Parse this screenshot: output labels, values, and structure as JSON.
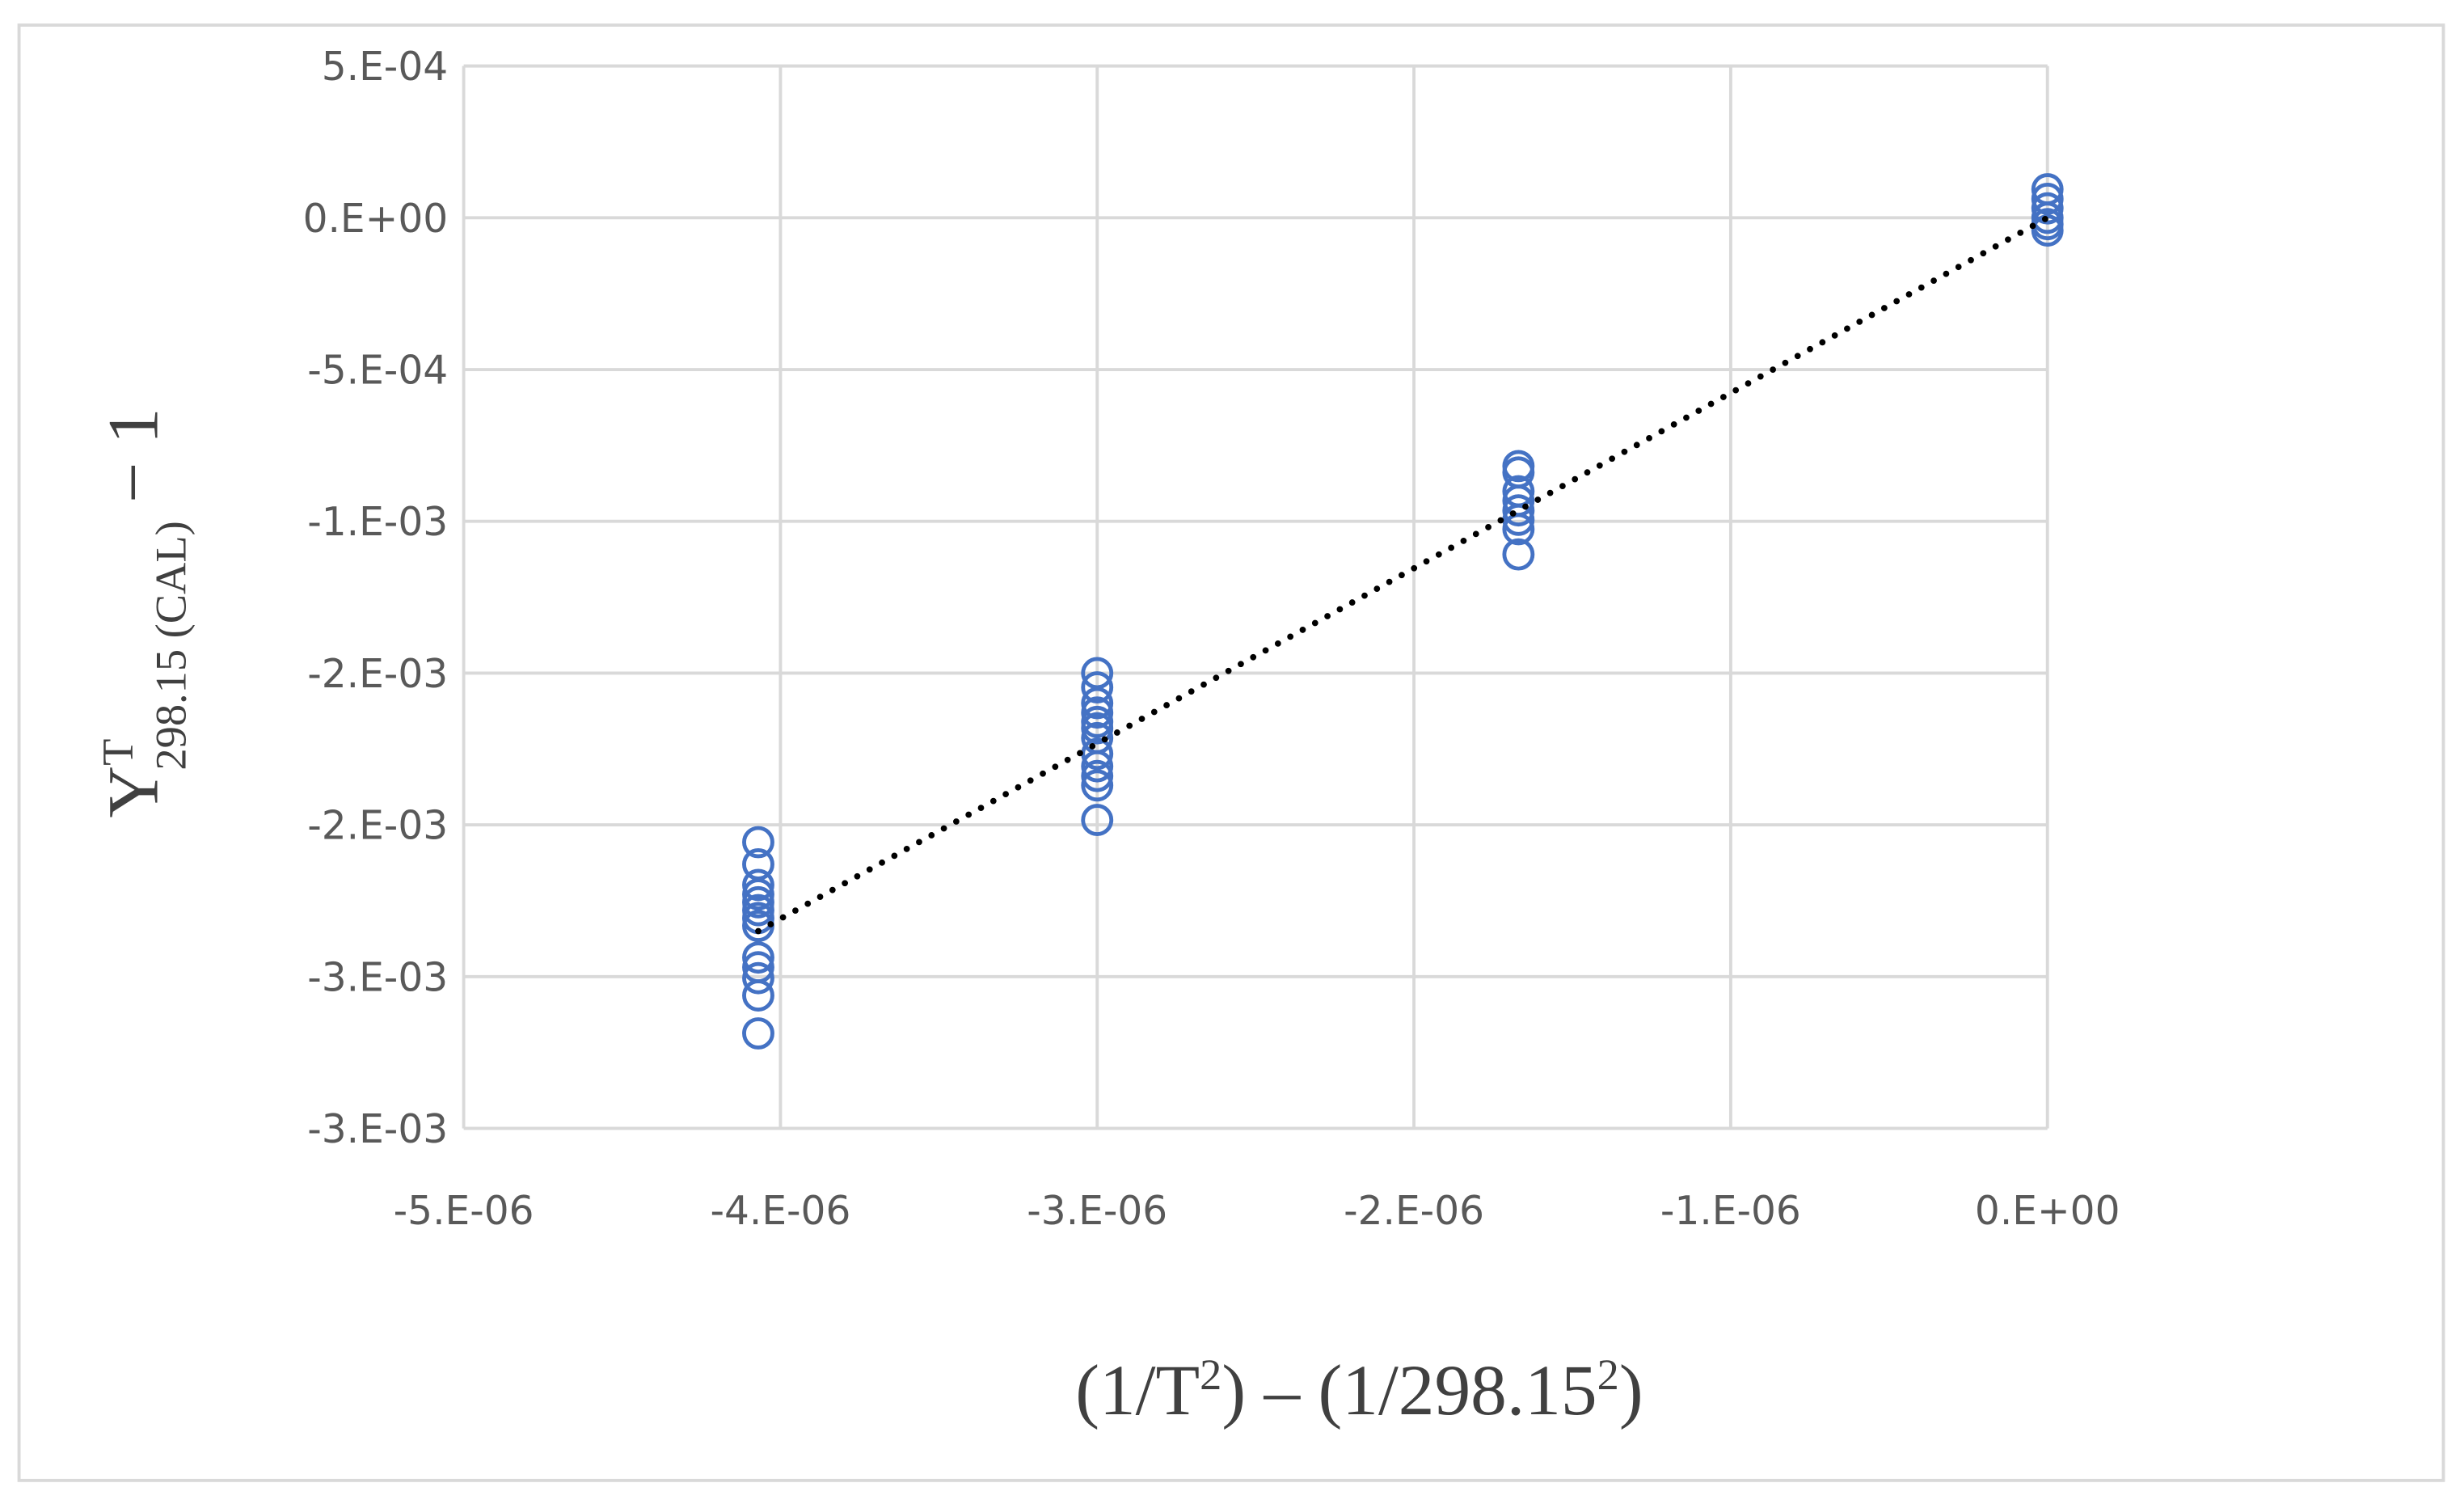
{
  "chart_data": {
    "type": "scatter",
    "y_label": {
      "base": "Y",
      "sup": "T",
      "sub": "298.15 (CAL)",
      "tail": " − 1"
    },
    "x_label": [
      {
        "text": "(1/T"
      },
      {
        "text": "2",
        "sup": true
      },
      {
        "text": ") – (1/298.15"
      },
      {
        "text": "2",
        "sup": true
      },
      {
        "text": ")"
      }
    ],
    "x": [
      -4.07e-06,
      -4.07e-06,
      -4.07e-06,
      -4.07e-06,
      -4.07e-06,
      -4.07e-06,
      -4.07e-06,
      -4.07e-06,
      -4.07e-06,
      -4.07e-06,
      -4.07e-06,
      -4.07e-06,
      -4.07e-06,
      -3e-06,
      -3e-06,
      -3e-06,
      -3e-06,
      -3e-06,
      -3e-06,
      -3e-06,
      -3e-06,
      -3e-06,
      -3e-06,
      -3e-06,
      -3e-06,
      -1.67e-06,
      -1.67e-06,
      -1.67e-06,
      -1.67e-06,
      -1.67e-06,
      -1.67e-06,
      -1.67e-06,
      -1.67e-06,
      0,
      0,
      0,
      0,
      0,
      0
    ],
    "values": [
      -0.002057,
      -0.00213,
      -0.002198,
      -0.002229,
      -0.002255,
      -0.002281,
      -0.002307,
      -0.002333,
      -0.002437,
      -0.002469,
      -0.002505,
      -0.002562,
      -0.002687,
      -0.0015,
      -0.001547,
      -0.001599,
      -0.00163,
      -0.001661,
      -0.001682,
      -0.001714,
      -0.001766,
      -0.001807,
      -0.001839,
      -0.00187,
      -0.001984,
      -0.000818,
      -0.000839,
      -0.000901,
      -0.000932,
      -0.000964,
      -0.000995,
      -0.001026,
      -0.001109,
      9.4e-05,
      6.25e-05,
      3.1e-05,
      0,
      -2.1e-05,
      -4.2e-05
    ],
    "color": "#4472c4",
    "trendline": {
      "x": [
        -4.07e-06,
        0
      ],
      "values": [
        -0.00235,
        0
      ],
      "color": "#000000"
    },
    "xlim": [
      -5e-06,
      0
    ],
    "xticks": [
      {
        "value": -5e-06,
        "label": "-5.E-06"
      },
      {
        "value": -4e-06,
        "label": "-4.E-06"
      },
      {
        "value": -3e-06,
        "label": "-3.E-06"
      },
      {
        "value": -2e-06,
        "label": "-2.E-06"
      },
      {
        "value": -1e-06,
        "label": "-1.E-06"
      },
      {
        "value": 0,
        "label": "0.E+00"
      }
    ],
    "ylim": [
      -0.003,
      0.0005
    ],
    "yticks": [
      {
        "value": 0.0005,
        "label": "5.E-04"
      },
      {
        "value": 0,
        "label": "0.E+00"
      },
      {
        "value": -0.0005,
        "label": "-5.E-04"
      },
      {
        "value": -0.001,
        "label": "-1.E-03"
      },
      {
        "value": -0.0015,
        "label": "-2.E-03"
      },
      {
        "value": -0.002,
        "label": "-2.E-03"
      },
      {
        "value": -0.0025,
        "label": "-3.E-03"
      },
      {
        "value": -0.003,
        "label": "-3.E-03"
      }
    ],
    "grid": true
  }
}
